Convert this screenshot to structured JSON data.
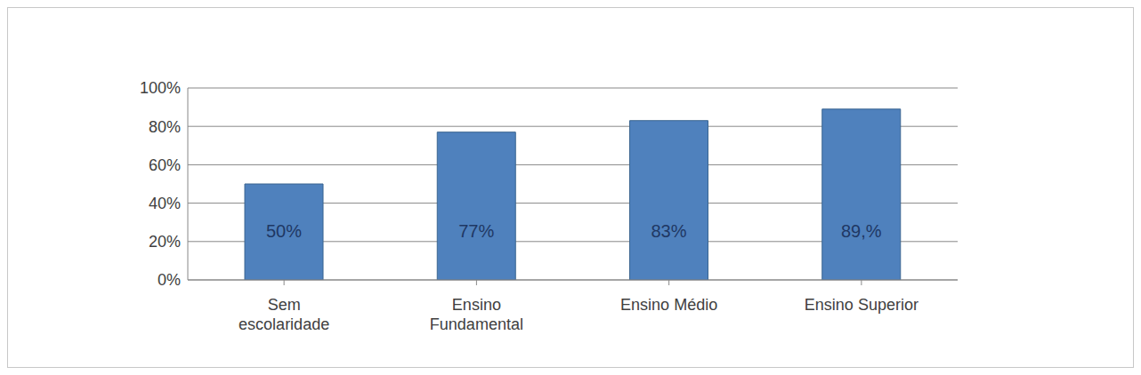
{
  "chart_data": {
    "type": "bar",
    "categories": [
      "Sem escolaridade",
      "Ensino Fundamental",
      "Ensino Médio",
      "Ensino Superior"
    ],
    "values": [
      50,
      77,
      83,
      89
    ],
    "value_labels": [
      "50%",
      "77%",
      "83%",
      "89,%"
    ],
    "data_labels": true,
    "color": "#4f81bd",
    "ylim": [
      0,
      100
    ],
    "yticks": [
      {
        "value": 0,
        "label": "0%"
      },
      {
        "value": 20,
        "label": "20%"
      },
      {
        "value": 40,
        "label": "40%"
      },
      {
        "value": 60,
        "label": "60%"
      },
      {
        "value": 80,
        "label": "80%"
      },
      {
        "value": 100,
        "label": "100%"
      }
    ],
    "grid": true
  }
}
